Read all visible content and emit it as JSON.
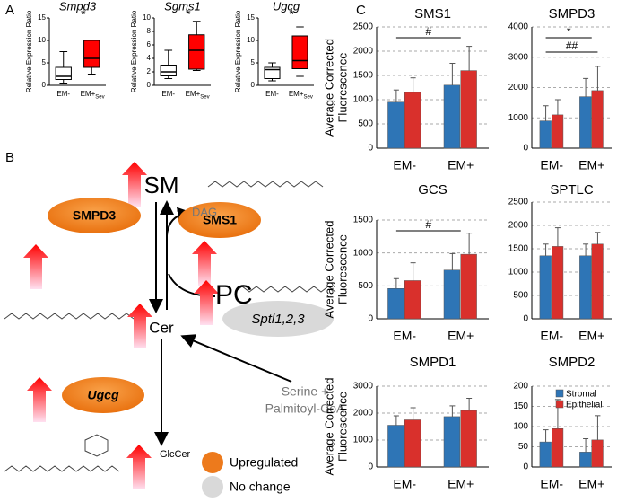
{
  "panel_labels": [
    "A",
    "B",
    "C"
  ],
  "chart_data": [
    {
      "type": "box",
      "title": "Smpd3",
      "categories": [
        "EM-",
        "EM+"
      ],
      "subscript": "Sev",
      "ylabel": "Relative Expression Ratio",
      "ylim": [
        0,
        15
      ],
      "yticks": [
        0,
        5,
        10,
        15
      ],
      "colors": [
        "#ffffff",
        "#ff0000"
      ],
      "annotation": "*",
      "boxes": [
        {
          "min": 0.5,
          "q1": 1.3,
          "median": 2,
          "q3": 4,
          "max": 7.5
        },
        {
          "min": 2.5,
          "q1": 4,
          "median": 6,
          "q3": 10,
          "max": 10
        }
      ]
    },
    {
      "type": "box",
      "title": "Sgms1",
      "categories": [
        "EM-",
        "EM+"
      ],
      "subscript": "Sev",
      "ylabel": "Relative Expression Ratio",
      "ylim": [
        0,
        10
      ],
      "yticks": [
        0,
        2,
        4,
        6,
        8,
        10
      ],
      "colors": [
        "#ffffff",
        "#ff0000"
      ],
      "annotation": "*",
      "boxes": [
        {
          "min": 1,
          "q1": 1.4,
          "median": 2,
          "q3": 3,
          "max": 5.2
        },
        {
          "min": 2.2,
          "q1": 2.4,
          "median": 5.2,
          "q3": 7.5,
          "max": 9.5
        }
      ]
    },
    {
      "type": "box",
      "title": "Ugcg",
      "categories": [
        "EM-",
        "EM+"
      ],
      "subscript": "Sev",
      "ylabel": "Relative Expression Ratio",
      "ylim": [
        0,
        15
      ],
      "yticks": [
        0,
        5,
        10,
        15
      ],
      "colors": [
        "#ffffff",
        "#ff0000"
      ],
      "annotation": "*",
      "boxes": [
        {
          "min": 1,
          "q1": 1.5,
          "median": 3.5,
          "q3": 4,
          "max": 5
        },
        {
          "min": 2,
          "q1": 3.7,
          "median": 5.5,
          "q3": 11,
          "max": 13
        }
      ]
    },
    {
      "type": "bar",
      "title": "SMS1",
      "categories": [
        "EM-",
        "EM+"
      ],
      "ylabel": [
        "Average Corrected",
        "Fluorescence"
      ],
      "ylim": [
        0,
        2500
      ],
      "yticks": [
        0,
        500,
        1000,
        1500,
        2000,
        2500
      ],
      "grid": true,
      "annotations": [
        "#"
      ],
      "series": [
        {
          "color": "#2e75b6",
          "values": [
            950,
            1300
          ],
          "errors": [
            250,
            450
          ]
        },
        {
          "color": "#d9302c",
          "values": [
            1150,
            1600
          ],
          "errors": [
            300,
            500
          ]
        }
      ]
    },
    {
      "type": "bar",
      "title": "SMPD3",
      "categories": [
        "EM-",
        "EM+"
      ],
      "ylim": [
        0,
        4000
      ],
      "yticks": [
        0,
        1000,
        2000,
        3000,
        4000
      ],
      "grid": true,
      "annotations": [
        "*",
        "##"
      ],
      "series": [
        {
          "color": "#2e75b6",
          "values": [
            900,
            1700
          ],
          "errors": [
            500,
            600
          ]
        },
        {
          "color": "#d9302c",
          "values": [
            1100,
            1900
          ],
          "errors": [
            500,
            800
          ]
        }
      ]
    },
    {
      "type": "bar",
      "title": "GCS",
      "categories": [
        "EM-",
        "EM+"
      ],
      "ylabel": [
        "Average Corrected",
        "Fluorescence"
      ],
      "ylim": [
        0,
        1500
      ],
      "yticks": [
        0,
        500,
        1000,
        1500
      ],
      "grid": true,
      "annotations": [
        "#"
      ],
      "series": [
        {
          "color": "#2e75b6",
          "values": [
            460,
            740
          ],
          "errors": [
            150,
            250
          ]
        },
        {
          "color": "#d9302c",
          "values": [
            580,
            980
          ],
          "errors": [
            270,
            320
          ]
        }
      ]
    },
    {
      "type": "bar",
      "title": "SPTLC",
      "categories": [
        "EM-",
        "EM+"
      ],
      "ylim": [
        0,
        2500
      ],
      "yticks": [
        0,
        500,
        1000,
        1500,
        2000,
        2500
      ],
      "grid": true,
      "series": [
        {
          "color": "#2e75b6",
          "values": [
            1350,
            1350
          ],
          "errors": [
            250,
            250
          ]
        },
        {
          "color": "#d9302c",
          "values": [
            1550,
            1600
          ],
          "errors": [
            400,
            250
          ]
        }
      ]
    },
    {
      "type": "bar",
      "title": "SMPD1",
      "categories": [
        "EM-",
        "EM+"
      ],
      "ylabel": [
        "Average Corrected",
        "Fluorescence"
      ],
      "ylim": [
        0,
        3000
      ],
      "yticks": [
        0,
        1000,
        2000,
        3000
      ],
      "grid": true,
      "series": [
        {
          "color": "#2e75b6",
          "values": [
            1550,
            1870
          ],
          "errors": [
            350,
            400
          ]
        },
        {
          "color": "#d9302c",
          "values": [
            1750,
            2100
          ],
          "errors": [
            450,
            450
          ]
        }
      ]
    },
    {
      "type": "bar",
      "title": "SMPD2",
      "categories": [
        "EM-",
        "EM+"
      ],
      "ylim": [
        0,
        200
      ],
      "yticks": [
        0,
        50,
        100,
        150,
        200
      ],
      "grid": true,
      "legend": "top-right",
      "series": [
        {
          "name": "Stromal",
          "color": "#2e75b6",
          "values": [
            62,
            37
          ],
          "errors": [
            30,
            33
          ]
        },
        {
          "name": "Epithelial",
          "color": "#d9302c",
          "values": [
            95,
            67
          ],
          "errors": [
            72,
            60
          ]
        }
      ]
    }
  ],
  "diagram": {
    "metabolites": {
      "sm": "SM",
      "dag": "DAG",
      "pc": "PC",
      "cer": "Cer",
      "glccer": "GlcCer",
      "substrate": [
        "Serine +",
        "Palmitoyl-CoA"
      ]
    },
    "enzymes": {
      "smpd3": "SMPD3",
      "sms1": "SMS1",
      "sptl": "Sptl1,2,3",
      "ugcg": "Ugcg"
    },
    "legend": {
      "upregulated": "Upregulated",
      "no_change": "No change"
    }
  }
}
